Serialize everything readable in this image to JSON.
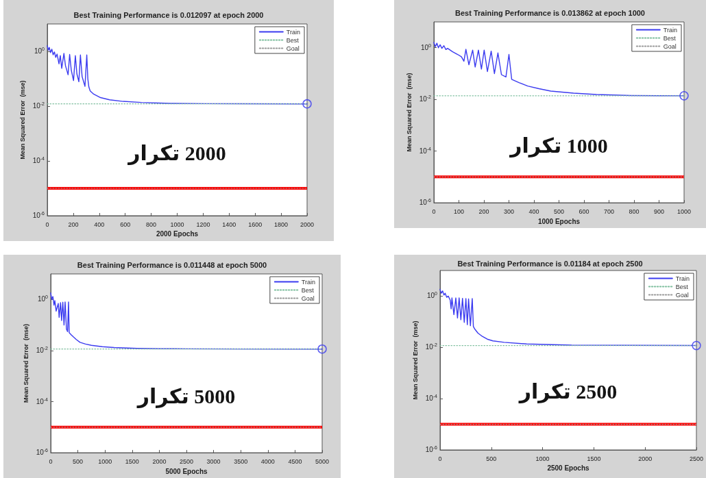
{
  "chart_data": [
    {
      "type": "line",
      "title": "Best Training Performance is 0.012097 at epoch 2000",
      "xlabel": "2000 Epochs",
      "ylabel": "Mean Squared Error  (mse)",
      "annotations": [
        "2000 تكرار"
      ],
      "log": "y",
      "legend": "top right",
      "xlim": [
        0,
        2000
      ],
      "xticks": [
        0,
        200,
        400,
        600,
        800,
        1000,
        1200,
        1400,
        1600,
        1800,
        2000
      ],
      "ylim": [
        1e-06,
        10
      ],
      "yticks": [
        {
          "value": 1,
          "label": "10$^{0}$"
        },
        {
          "value": 0.01,
          "label": "10$^{-2}$"
        },
        {
          "value": 0.0001,
          "label": "10$^{-4}$"
        },
        {
          "value": 1e-06,
          "label": "10$^{-6}$"
        }
      ],
      "series": [
        {
          "name": "Train",
          "color": "#3b3bf0",
          "line_style": "solid",
          "x": [
            0,
            8,
            15,
            25,
            35,
            45,
            55,
            65,
            75,
            90,
            100,
            111,
            128,
            140,
            160,
            172,
            185,
            202,
            216,
            228,
            243,
            255,
            268,
            290,
            304,
            312,
            320,
            330,
            357,
            410,
            480,
            585,
            726,
            950,
            1220,
            1500,
            2000
          ],
          "values": [
            1.6,
            1.1,
            1.4,
            0.9,
            1.2,
            0.75,
            0.95,
            0.6,
            0.8,
            0.35,
            0.7,
            0.24,
            0.84,
            0.3,
            0.14,
            0.77,
            0.2,
            0.086,
            0.7,
            0.15,
            0.078,
            0.74,
            0.12,
            0.053,
            0.74,
            0.1,
            0.05,
            0.036,
            0.0275,
            0.0205,
            0.017,
            0.0149,
            0.0136,
            0.0126,
            0.0123,
            0.0122,
            0.012097
          ]
        },
        {
          "name": "Best",
          "color": "#7fbf9f",
          "line_style": "dotted",
          "x": [
            0,
            2000
          ],
          "values": [
            0.012097,
            0.012097
          ]
        },
        {
          "name": "Goal",
          "color": "#9a9a9a",
          "line_style": "dotted",
          "x": [
            0,
            2000
          ],
          "values": [
            1e-05,
            1e-05
          ]
        },
        {
          "type": "scatter",
          "color": "#3b3bf0",
          "marker": "circle",
          "x": [
            2000
          ],
          "values": [
            0.012097
          ]
        }
      ],
      "ref_lines": [
        {
          "axis": "y",
          "value": 1e-05,
          "color": "#ff0000"
        }
      ]
    },
    {
      "type": "line",
      "title": "Best Training Performance is 0.013862 at epoch 1000",
      "xlabel": "1000 Epochs",
      "ylabel": "Mean Squared Error  (mse)",
      "annotations": [
        "1000 تكرار"
      ],
      "log": "y",
      "legend": "top right",
      "xlim": [
        0,
        1000
      ],
      "xticks": [
        0,
        100,
        200,
        300,
        400,
        500,
        600,
        700,
        800,
        900,
        1000
      ],
      "ylim": [
        1e-06,
        10
      ],
      "yticks": [
        {
          "value": 1,
          "label": "10$^{0}$"
        },
        {
          "value": 0.01,
          "label": "10$^{-2}$"
        },
        {
          "value": 0.0001,
          "label": "10$^{-4}$"
        },
        {
          "value": 1e-06,
          "label": "10$^{-6}$"
        }
      ],
      "series": [
        {
          "name": "Train",
          "color": "#3b3bf0",
          "line_style": "solid",
          "x": [
            0,
            6,
            12,
            18,
            25,
            32,
            40,
            48,
            55,
            75,
            95,
            110,
            120,
            128,
            140,
            155,
            165,
            178,
            190,
            201,
            214,
            229,
            242,
            256,
            270,
            288,
            300,
            311,
            340,
            375,
            420,
            467,
            558,
            650,
            787,
            900,
            1000
          ],
          "values": [
            1.6,
            1.1,
            1.5,
            1.0,
            1.3,
            0.95,
            1.2,
            0.85,
            0.95,
            0.7,
            0.55,
            0.45,
            0.3,
            0.87,
            0.22,
            0.81,
            0.18,
            0.81,
            0.15,
            0.81,
            0.12,
            0.74,
            0.1,
            0.63,
            0.091,
            0.074,
            0.55,
            0.06,
            0.045,
            0.033,
            0.026,
            0.021,
            0.0175,
            0.0155,
            0.0142,
            0.0139,
            0.013862
          ]
        },
        {
          "name": "Best",
          "color": "#7fbf9f",
          "line_style": "dotted",
          "x": [
            0,
            1000
          ],
          "values": [
            0.013862,
            0.013862
          ]
        },
        {
          "name": "Goal",
          "color": "#9a9a9a",
          "line_style": "dotted",
          "x": [
            0,
            1000
          ],
          "values": [
            1e-05,
            1e-05
          ]
        },
        {
          "type": "scatter",
          "color": "#3b3bf0",
          "marker": "circle",
          "x": [
            1000
          ],
          "values": [
            0.013862
          ]
        }
      ],
      "ref_lines": [
        {
          "axis": "y",
          "value": 1e-05,
          "color": "#ff0000"
        }
      ]
    },
    {
      "type": "line",
      "title": "Best Training Performance is 0.011448 at epoch 5000",
      "xlabel": "5000 Epochs",
      "ylabel": "Mean Squared Error  (mse)",
      "annotations": [
        "5000 تكرار"
      ],
      "log": "y",
      "legend": "top right",
      "xlim": [
        0,
        5000
      ],
      "xticks": [
        0,
        500,
        1000,
        1500,
        2000,
        2500,
        3000,
        3500,
        4000,
        4500,
        5000
      ],
      "ylim": [
        1e-06,
        10
      ],
      "yticks": [
        {
          "value": 1,
          "label": "10$^{0}$"
        },
        {
          "value": 0.01,
          "label": "10$^{-2}$"
        },
        {
          "value": 0.0001,
          "label": "10$^{-4}$"
        },
        {
          "value": 1e-06,
          "label": "10$^{-6}$"
        }
      ],
      "series": [
        {
          "name": "Train",
          "color": "#3b3bf0",
          "line_style": "solid",
          "x": [
            0,
            20,
            40,
            60,
            76,
            100,
            120,
            139,
            155,
            181,
            200,
            223,
            245,
            265,
            290,
            310,
            328,
            340,
            375,
            412,
            470,
            539,
            640,
            749,
            950,
            1170,
            1591,
            2012,
            2500,
            3500,
            5000
          ],
          "values": [
            1.8,
            1.0,
            1.3,
            0.6,
            0.9,
            0.35,
            0.5,
            0.7,
            0.2,
            0.75,
            0.15,
            0.78,
            0.1,
            0.8,
            0.07,
            0.055,
            0.8,
            0.05,
            0.042,
            0.035,
            0.027,
            0.021,
            0.018,
            0.016,
            0.0142,
            0.0131,
            0.0122,
            0.0118,
            0.0117,
            0.0115,
            0.011448
          ]
        },
        {
          "name": "Best",
          "color": "#7fbf9f",
          "line_style": "dotted",
          "x": [
            0,
            5000
          ],
          "values": [
            0.011448,
            0.011448
          ]
        },
        {
          "name": "Goal",
          "color": "#9a9a9a",
          "line_style": "dotted",
          "x": [
            0,
            5000
          ],
          "values": [
            1e-05,
            1e-05
          ]
        },
        {
          "type": "scatter",
          "color": "#3b3bf0",
          "marker": "circle",
          "x": [
            5000
          ],
          "values": [
            0.011448
          ]
        }
      ],
      "ref_lines": [
        {
          "axis": "y",
          "value": 1e-05,
          "color": "#ff0000"
        }
      ]
    },
    {
      "type": "line",
      "title": "Best Training Performance is 0.01184 at epoch 2500",
      "xlabel": "2500 Epochs",
      "ylabel": "Mean Squared Error  (mse)",
      "annotations": [
        "2500 تكرار"
      ],
      "log": "y",
      "legend": "top right",
      "xlim": [
        0,
        2500
      ],
      "xticks": [
        0,
        500,
        1000,
        1500,
        2000,
        2500
      ],
      "ylim": [
        1e-06,
        10
      ],
      "yticks": [
        {
          "value": 1,
          "label": "10$^{0}$"
        },
        {
          "value": 0.01,
          "label": "10$^{-2}$"
        },
        {
          "value": 0.0001,
          "label": "10$^{-4}$"
        },
        {
          "value": 1e-06,
          "label": "10$^{-6}$"
        }
      ],
      "series": [
        {
          "name": "Train",
          "color": "#3b3bf0",
          "line_style": "solid",
          "x": [
            0,
            12,
            25,
            38,
            50,
            65,
            80,
            99,
            108,
            116,
            135,
            154,
            170,
            186,
            203,
            219,
            236,
            252,
            266,
            278,
            296,
            314,
            325,
            340,
            370,
            406,
            460,
            515,
            625,
            844,
            1283,
            1800,
            2500
          ],
          "values": [
            1.85,
            1.3,
            1.6,
            1.1,
            1.3,
            0.9,
            1.0,
            0.7,
            0.32,
            0.85,
            0.19,
            0.85,
            0.14,
            0.85,
            0.12,
            0.82,
            0.095,
            0.8,
            0.077,
            0.78,
            0.07,
            0.8,
            0.065,
            0.051,
            0.036,
            0.028,
            0.021,
            0.018,
            0.0158,
            0.0136,
            0.0122,
            0.012,
            0.01184
          ]
        },
        {
          "name": "Best",
          "color": "#7fbf9f",
          "line_style": "dotted",
          "x": [
            0,
            2500
          ],
          "values": [
            0.01184,
            0.01184
          ]
        },
        {
          "name": "Goal",
          "color": "#9a9a9a",
          "line_style": "dotted",
          "x": [
            0,
            2500
          ],
          "values": [
            1e-05,
            1e-05
          ]
        },
        {
          "type": "scatter",
          "color": "#3b3bf0",
          "marker": "circle",
          "x": [
            2500
          ],
          "values": [
            0.01184
          ]
        }
      ],
      "ref_lines": [
        {
          "axis": "y",
          "value": 1e-05,
          "color": "#ff0000"
        }
      ]
    }
  ]
}
